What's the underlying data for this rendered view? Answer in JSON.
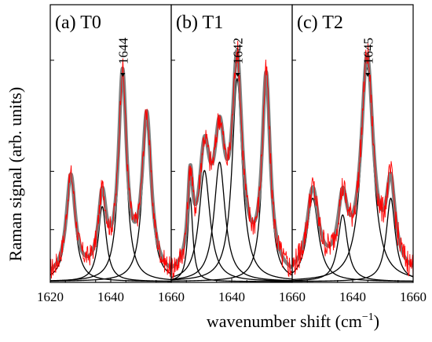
{
  "figure": {
    "ylabel": "Raman signal (arb. units)",
    "xlabel": "wavenumber shift (cm",
    "xlabel_sup": "−1",
    "xlabel_close": ")"
  },
  "chart_data": [
    {
      "type": "line",
      "panel_label": "(a) T0",
      "peak_annotation": "1644",
      "peak_position": 1644,
      "x_ticks": [
        1620,
        1640,
        1660
      ],
      "xlim": [
        1620,
        1660
      ],
      "ylim": [
        0,
        1
      ],
      "xlabel": "wavenumber shift (cm−1)",
      "ylabel": "Raman signal (arb. units)",
      "colors": {
        "fit_sum": "#7f7f7f",
        "experimental": "#ff0000",
        "components": "#000000"
      },
      "components": [
        {
          "center": 1626.8,
          "height": 0.36,
          "width": 1.8
        },
        {
          "center": 1637.2,
          "height": 0.27,
          "width": 1.6
        },
        {
          "center": 1643.9,
          "height": 0.71,
          "width": 1.6
        },
        {
          "center": 1651.9,
          "height": 0.57,
          "width": 1.8
        }
      ],
      "baseline": 0.015,
      "noise_amplitude": 0.04
    },
    {
      "type": "line",
      "panel_label": "(b) T1",
      "peak_annotation": "1642",
      "peak_position": 1642,
      "x_ticks": [
        1620,
        1640,
        1660
      ],
      "xlim": [
        1620,
        1660
      ],
      "ylim": [
        0,
        1
      ],
      "xlabel": "wavenumber shift (cm−1)",
      "ylabel": "Raman signal (arb. units)",
      "colors": {
        "fit_sum": "#7f7f7f",
        "experimental": "#ff0000",
        "components": "#000000"
      },
      "components": [
        {
          "center": 1626.3,
          "height": 0.3,
          "width": 1.0
        },
        {
          "center": 1631.0,
          "height": 0.4,
          "width": 2.2
        },
        {
          "center": 1636.0,
          "height": 0.43,
          "width": 2.2
        },
        {
          "center": 1641.8,
          "height": 0.73,
          "width": 2.0
        },
        {
          "center": 1651.4,
          "height": 0.7,
          "width": 1.6
        }
      ],
      "baseline": 0.015,
      "noise_amplitude": 0.05
    },
    {
      "type": "line",
      "panel_label": "(c) T2",
      "peak_annotation": "1645",
      "peak_position": 1645,
      "x_ticks": [
        1620,
        1640,
        1660
      ],
      "xlim": [
        1620,
        1660
      ],
      "ylim": [
        0,
        1
      ],
      "xlabel": "wavenumber shift (cm−1)",
      "ylabel": "Raman signal (arb. units)",
      "colors": {
        "fit_sum": "#7f7f7f",
        "experimental": "#ff0000",
        "components": "#000000"
      },
      "components": [
        {
          "center": 1626.8,
          "height": 0.3,
          "width": 2.3
        },
        {
          "center": 1636.7,
          "height": 0.24,
          "width": 1.9
        },
        {
          "center": 1644.8,
          "height": 0.77,
          "width": 2.4
        },
        {
          "center": 1652.6,
          "height": 0.3,
          "width": 1.8
        }
      ],
      "baseline": 0.02,
      "noise_amplitude": 0.05
    }
  ]
}
